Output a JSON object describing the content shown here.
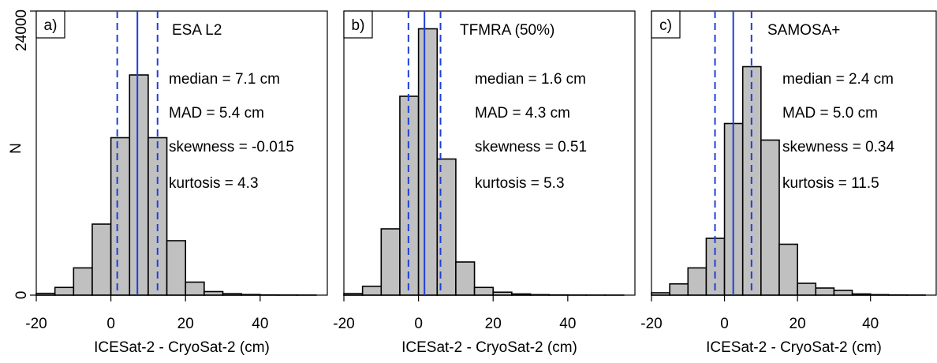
{
  "figure": {
    "y_axis_label": "N",
    "x_axis_label": "ICESat-2 - CryoSat-2 (cm)"
  },
  "colors": {
    "bar_fill": "#c0c0c0",
    "bar_stroke": "#000000",
    "median_line": "#1f3fd6",
    "mad_line": "#1f3fd6",
    "axes": "#000000"
  },
  "chart_data": [
    {
      "type": "bar",
      "panel_label": "a)",
      "title": "ESA L2",
      "xlabel": "ICESat-2 - CryoSat-2 (cm)",
      "ylabel": "N",
      "xlim": [
        -20,
        58
      ],
      "ylim": [
        0,
        24000
      ],
      "x_ticks": [
        -20,
        0,
        20,
        40
      ],
      "y_ticks": [
        0,
        24000
      ],
      "bin_edges": [
        -20,
        -15,
        -10,
        -5,
        0,
        5,
        10,
        15,
        20,
        25,
        30,
        35,
        40,
        45,
        50,
        55
      ],
      "values": [
        150,
        650,
        2300,
        6000,
        13300,
        18600,
        13300,
        4600,
        1100,
        300,
        120,
        50,
        20,
        10,
        5
      ],
      "median": 7.1,
      "mad_lines": [
        1.7,
        12.5
      ],
      "stats": [
        "median = 7.1 cm",
        "MAD = 5.4 cm",
        "skewness = -0.015",
        "kurtosis = 4.3"
      ]
    },
    {
      "type": "bar",
      "panel_label": "b)",
      "title": "TFMRA (50%)",
      "xlabel": "ICESat-2 - CryoSat-2 (cm)",
      "ylabel": "N",
      "xlim": [
        -20,
        58
      ],
      "ylim": [
        0,
        24000
      ],
      "x_ticks": [
        -20,
        0,
        20,
        40
      ],
      "y_ticks": [
        0,
        24000
      ],
      "bin_edges": [
        -20,
        -15,
        -10,
        -5,
        0,
        5,
        10,
        15,
        20,
        25,
        30,
        35,
        40,
        45,
        50,
        55
      ],
      "values": [
        130,
        750,
        5600,
        16800,
        22500,
        11500,
        2800,
        650,
        250,
        100,
        40,
        15,
        8,
        4,
        2
      ],
      "median": 1.6,
      "mad_lines": [
        -2.7,
        5.9
      ],
      "stats": [
        "median = 1.6 cm",
        "MAD = 4.3 cm",
        "skewness = 0.51",
        "kurtosis = 5.3"
      ]
    },
    {
      "type": "bar",
      "panel_label": "c)",
      "title": "SAMOSA+",
      "xlabel": "ICESat-2 - CryoSat-2 (cm)",
      "ylabel": "N",
      "xlim": [
        -20,
        58
      ],
      "ylim": [
        0,
        24000
      ],
      "x_ticks": [
        -20,
        0,
        20,
        40
      ],
      "y_ticks": [
        0,
        24000
      ],
      "bin_edges": [
        -20,
        -15,
        -10,
        -5,
        0,
        5,
        10,
        15,
        20,
        25,
        30,
        35,
        40,
        45,
        50,
        55
      ],
      "values": [
        200,
        950,
        2300,
        4800,
        14500,
        19300,
        13100,
        4300,
        1000,
        600,
        400,
        100,
        40,
        15,
        8
      ],
      "median": 2.4,
      "mad_lines": [
        -2.6,
        7.4
      ],
      "stats": [
        "median = 2.4 cm",
        "MAD = 5.0 cm",
        "skewness = 0.34",
        "kurtosis = 11.5"
      ]
    }
  ]
}
